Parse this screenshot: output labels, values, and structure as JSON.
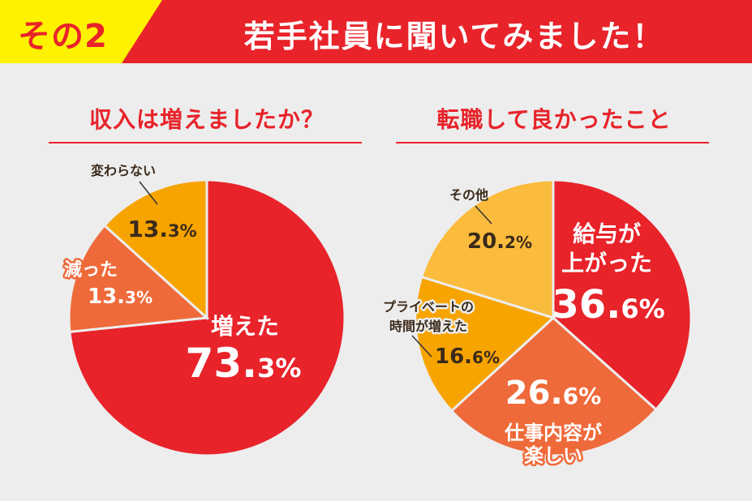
{
  "header": {
    "badge": "その2",
    "title": "若手社員に聞いてみました！"
  },
  "colors": {
    "red": "#e8232a",
    "orange_red": "#ef6a3a",
    "orange": "#f7a400",
    "yellow_orange": "#fbbb3c",
    "dark_text": "#3a2a1a",
    "white": "#ffffff"
  },
  "chart_data": [
    {
      "type": "pie",
      "title": "収入は増えましたか？",
      "slices": [
        {
          "label": [
            "増えた"
          ],
          "value": 73.3,
          "value_text": "73.3%",
          "color": "#e8232a"
        },
        {
          "label": [
            "減った"
          ],
          "value": 13.3,
          "value_text": "13.3%",
          "color": "#ef6a3a"
        },
        {
          "label": [
            "変わらない"
          ],
          "value": 13.3,
          "value_text": "13.3%",
          "color": "#f7a400"
        }
      ]
    },
    {
      "type": "pie",
      "title": "転職して良かったこと",
      "slices": [
        {
          "label": [
            "給与が",
            "上がった"
          ],
          "value": 36.6,
          "value_text": "36.6%",
          "color": "#e8232a"
        },
        {
          "label": [
            "仕事内容が",
            "楽しい"
          ],
          "value": 26.6,
          "value_text": "26.6%",
          "color": "#ef6a3a"
        },
        {
          "label": [
            "プライベートの",
            "時間が増えた"
          ],
          "value": 16.6,
          "value_text": "16.6%",
          "color": "#f7a400"
        },
        {
          "label": [
            "その他"
          ],
          "value": 20.2,
          "value_text": "20.2%",
          "color": "#fbbb3c"
        }
      ]
    }
  ]
}
